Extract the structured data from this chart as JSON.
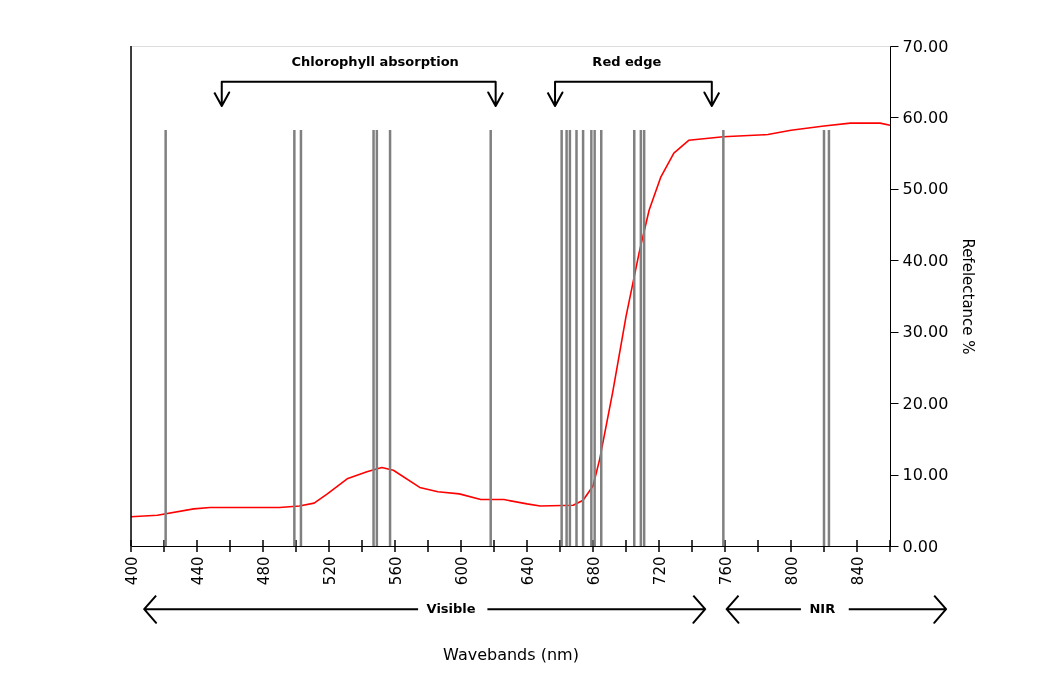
{
  "chart_data": {
    "type": "line",
    "xlabel": "Wavebands (nm)",
    "ylabel": "Refelectance %",
    "x": [
      400,
      416,
      438,
      448,
      490,
      502,
      511,
      519,
      531,
      543,
      552,
      559,
      575,
      586,
      599,
      612,
      626,
      640,
      648,
      668,
      674,
      680,
      684,
      692,
      700,
      708,
      714,
      721,
      729,
      738,
      759,
      786,
      800,
      820,
      836,
      854,
      860
    ],
    "series": [
      {
        "color": "#ff0000",
        "values": [
          4.1,
          4.3,
          5.2,
          5.4,
          5.4,
          5.6,
          6.0,
          7.3,
          9.4,
          10.4,
          11.0,
          10.6,
          8.2,
          7.6,
          7.3,
          6.5,
          6.5,
          5.9,
          5.6,
          5.7,
          6.4,
          8.4,
          12.1,
          21.6,
          32.1,
          41.1,
          47.0,
          51.6,
          55.0,
          56.8,
          57.3,
          57.6,
          58.2,
          58.8,
          59.2,
          59.2,
          58.9
        ]
      }
    ],
    "xlim": [
      400,
      860
    ],
    "xticks": [
      400,
      {
        "value": 420,
        "label": null
      },
      440,
      {
        "value": 460,
        "label": null
      },
      480,
      {
        "value": 500,
        "label": null
      },
      520,
      {
        "value": 540,
        "label": null
      },
      560,
      {
        "value": 580,
        "label": null
      },
      600,
      {
        "value": 620,
        "label": null
      },
      640,
      {
        "value": 660,
        "label": null
      },
      680,
      {
        "value": 700,
        "label": null
      },
      720,
      {
        "value": 740,
        "label": null
      },
      760,
      {
        "value": 780,
        "label": null
      },
      800,
      {
        "value": 820,
        "label": null
      },
      840,
      {
        "value": 860,
        "label": null
      }
    ],
    "ylim": [
      0,
      70
    ],
    "yticks": [
      {
        "value": 0,
        "label": "0.00"
      },
      {
        "value": 10,
        "label": "10.00"
      },
      {
        "value": 20,
        "label": "20.00"
      },
      {
        "value": 30,
        "label": "30.00"
      },
      {
        "value": 40,
        "label": "40.00"
      },
      {
        "value": 50,
        "label": "50.00"
      },
      {
        "value": 60,
        "label": "60.00"
      },
      {
        "value": 70,
        "label": "70.00"
      }
    ],
    "ref_lines": [
      {
        "axis": "x",
        "value": 421,
        "color": "#808080"
      },
      {
        "axis": "x",
        "value": 499,
        "color": "#808080"
      },
      {
        "axis": "x",
        "value": 503,
        "color": "#808080"
      },
      {
        "axis": "x",
        "value": 547,
        "color": "#808080"
      },
      {
        "axis": "x",
        "value": 549,
        "color": "#808080"
      },
      {
        "axis": "x",
        "value": 557,
        "color": "#808080"
      },
      {
        "axis": "x",
        "value": 618,
        "color": "#808080"
      },
      {
        "axis": "x",
        "value": 661,
        "color": "#808080"
      },
      {
        "axis": "x",
        "value": 664,
        "color": "#808080"
      },
      {
        "axis": "x",
        "value": 666,
        "color": "#808080"
      },
      {
        "axis": "x",
        "value": 670,
        "color": "#808080"
      },
      {
        "axis": "x",
        "value": 674,
        "color": "#808080"
      },
      {
        "axis": "x",
        "value": 679,
        "color": "#808080"
      },
      {
        "axis": "x",
        "value": 681,
        "color": "#808080"
      },
      {
        "axis": "x",
        "value": 685,
        "color": "#808080"
      },
      {
        "axis": "x",
        "value": 705,
        "color": "#808080"
      },
      {
        "axis": "x",
        "value": 709,
        "color": "#808080"
      },
      {
        "axis": "x",
        "value": 711,
        "color": "#808080"
      },
      {
        "axis": "x",
        "value": 759,
        "color": "#808080"
      },
      {
        "axis": "x",
        "value": 820,
        "color": "#808080"
      },
      {
        "axis": "x",
        "value": 823,
        "color": "#808080"
      }
    ],
    "annotations": [
      "Chlorophyll  absorption",
      "Red edge",
      "Visible",
      "NIR"
    ],
    "grid": false,
    "legend": false,
    "marker": "none",
    "line_style": "solid"
  }
}
